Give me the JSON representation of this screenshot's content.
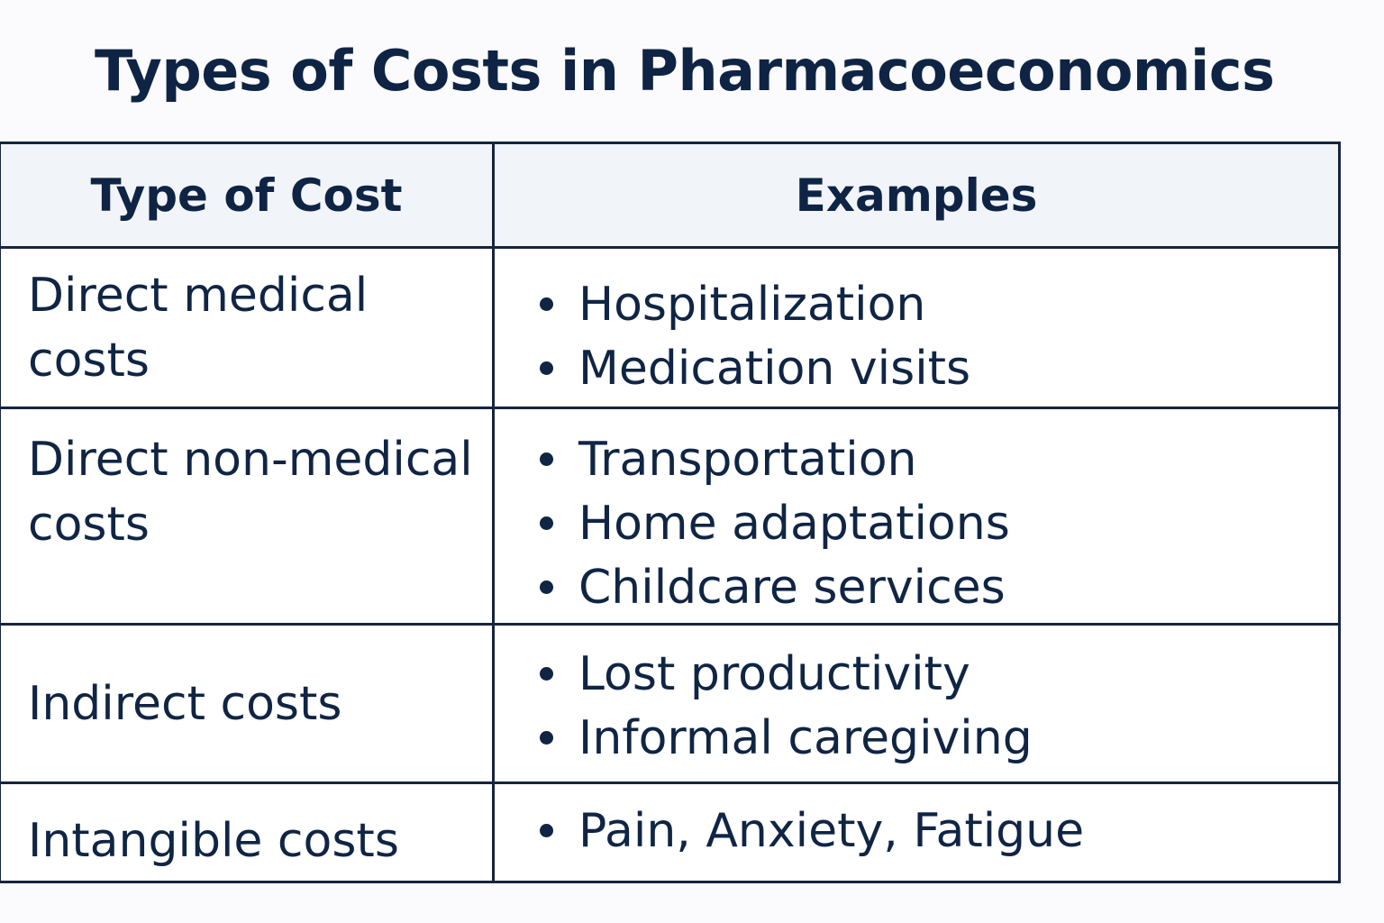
{
  "title": "Types of Costs in Pharmacoeconomics",
  "table": {
    "headers": {
      "type": "Type of Cost",
      "examples": "Examples"
    },
    "rows": [
      {
        "type": "Direct medical costs",
        "examples": [
          "Hospitalization",
          "Medication visits"
        ]
      },
      {
        "type": "Direct non-medical costs",
        "examples": [
          "Transportation",
          "Home adaptations",
          "Childcare services"
        ]
      },
      {
        "type": "Indirect costs",
        "examples": [
          "Lost productivity",
          "Informal caregiving"
        ]
      },
      {
        "type": "Intangible costs",
        "examples": [
          "Pain, Anxiety, Fatigue"
        ]
      }
    ]
  }
}
